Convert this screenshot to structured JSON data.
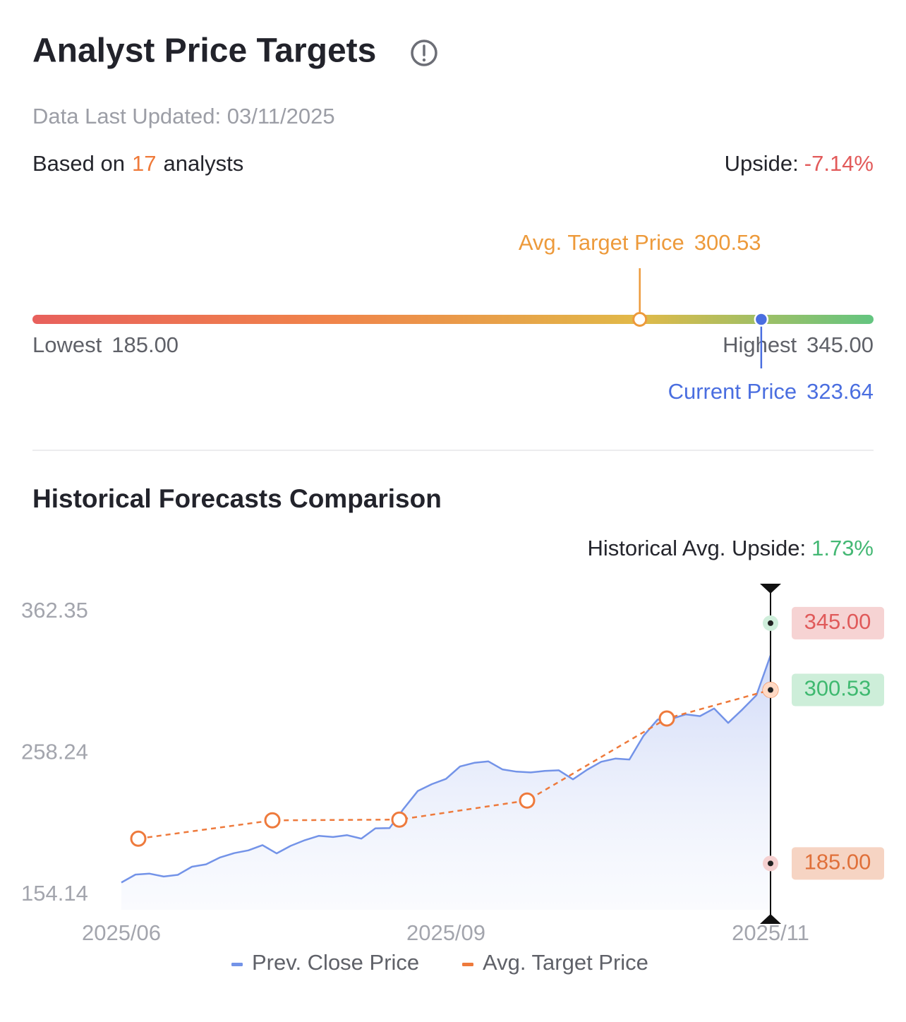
{
  "header": {
    "title": "Analyst Price Targets",
    "updated": "Data Last Updated: 03/11/2025",
    "based_prefix": "Based on",
    "analyst_count": 17,
    "based_suffix": "analysts",
    "upside_label": "Upside:",
    "upside": "-7.14%"
  },
  "range": {
    "avg_label": "Avg. Target Price",
    "avg": {
      "value": 300.53,
      "label": "300.53"
    },
    "low_label": "Lowest",
    "low": {
      "value": 185,
      "label": "185.00"
    },
    "high_label": "Highest",
    "high": {
      "value": 345,
      "label": "345.00"
    },
    "current_label": "Current Price",
    "current": {
      "value": 323.64,
      "label": "323.64"
    }
  },
  "chart_data": {
    "type": "line",
    "title": "Historical Forecasts Comparison",
    "upside_label": "Historical Avg. Upside:",
    "upside": "1.73%",
    "x": [
      0,
      1,
      2,
      3,
      4,
      5,
      6,
      7,
      8,
      9,
      10,
      11,
      12,
      13,
      14,
      15,
      16,
      17,
      18,
      19,
      20,
      21,
      22,
      23,
      24,
      25,
      26,
      27,
      28,
      29,
      30,
      31,
      32,
      33,
      34,
      35,
      36,
      37,
      38,
      39,
      40,
      41,
      42,
      43,
      44,
      45,
      46
    ],
    "xlim": [
      0,
      46
    ],
    "xticks": [
      {
        "value": 0,
        "label": "2025/06"
      },
      {
        "value": 23,
        "label": "2025/09"
      },
      {
        "value": 46,
        "label": "2025/11"
      }
    ],
    "ylim": [
      154.14,
      362.35
    ],
    "yticks": [
      362.35,
      258.24,
      154.14
    ],
    "series": [
      {
        "name": "Prev. Close Price",
        "color": "#7393e8",
        "values": [
          172.3,
          177.6,
          178.2,
          176.3,
          177.4,
          182.8,
          184.4,
          189.0,
          191.9,
          193.7,
          197.2,
          191.7,
          196.7,
          200.5,
          203.4,
          202.6,
          203.8,
          201.5,
          208.4,
          208.5,
          221.4,
          233.2,
          237.8,
          241.3,
          249.6,
          252.0,
          253.0,
          247.6,
          246.1,
          245.6,
          246.6,
          247.0,
          241.0,
          247.4,
          252.7,
          254.8,
          254.2,
          270.0,
          280.8,
          281.3,
          284.3,
          283.1,
          288.2,
          278.6,
          287.5,
          297.0,
          323.5
        ]
      },
      {
        "name": "Avg. Target Price",
        "color": "#ee7a3c",
        "x": [
          1.2,
          10.7,
          19.7,
          28.75,
          38.65,
          46
        ],
        "values": [
          201.5,
          213.7,
          214.2,
          226.9,
          281.5,
          300.53
        ]
      }
    ]
  }
}
